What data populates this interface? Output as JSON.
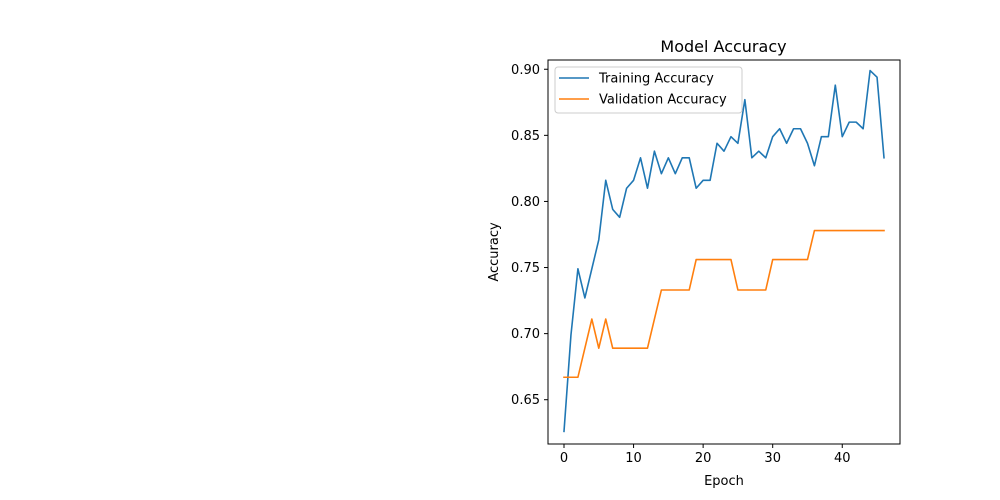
{
  "chart_data": {
    "type": "line",
    "title": "Model Accuracy",
    "xlabel": "Epoch",
    "ylabel": "Accuracy",
    "xlim": [
      -2.3,
      48.3
    ],
    "ylim": [
      0.6165,
      0.907
    ],
    "xticks": [
      0,
      10,
      20,
      30,
      40
    ],
    "yticks": [
      0.65,
      0.7,
      0.75,
      0.8,
      0.85,
      0.9
    ],
    "grid": false,
    "legend": "top-left",
    "x": [
      0,
      1,
      2,
      3,
      4,
      5,
      6,
      7,
      8,
      9,
      10,
      11,
      12,
      13,
      14,
      15,
      16,
      17,
      18,
      19,
      20,
      21,
      22,
      23,
      24,
      25,
      26,
      27,
      28,
      29,
      30,
      31,
      32,
      33,
      34,
      35,
      36,
      37,
      38,
      39,
      40,
      41,
      42,
      43,
      44,
      45,
      46
    ],
    "series": [
      {
        "name": "Training Accuracy",
        "color": "#1f77b4",
        "values": [
          0.626,
          0.699,
          0.749,
          0.727,
          0.749,
          0.771,
          0.816,
          0.794,
          0.788,
          0.81,
          0.816,
          0.833,
          0.81,
          0.838,
          0.821,
          0.833,
          0.821,
          0.833,
          0.833,
          0.81,
          0.816,
          0.816,
          0.844,
          0.838,
          0.849,
          0.844,
          0.877,
          0.833,
          0.838,
          0.833,
          0.849,
          0.855,
          0.844,
          0.855,
          0.855,
          0.844,
          0.827,
          0.849,
          0.849,
          0.888,
          0.849,
          0.86,
          0.86,
          0.855,
          0.899,
          0.894,
          0.833
        ]
      },
      {
        "name": "Validation Accuracy",
        "color": "#ff7f0e",
        "values": [
          0.667,
          0.667,
          0.667,
          0.689,
          0.711,
          0.689,
          0.711,
          0.689,
          0.689,
          0.689,
          0.689,
          0.689,
          0.689,
          0.711,
          0.733,
          0.733,
          0.733,
          0.733,
          0.733,
          0.756,
          0.756,
          0.756,
          0.756,
          0.756,
          0.756,
          0.733,
          0.733,
          0.733,
          0.733,
          0.733,
          0.756,
          0.756,
          0.756,
          0.756,
          0.756,
          0.756,
          0.778,
          0.778,
          0.778,
          0.778,
          0.778,
          0.778,
          0.778,
          0.778,
          0.778,
          0.778,
          0.778
        ]
      }
    ]
  }
}
